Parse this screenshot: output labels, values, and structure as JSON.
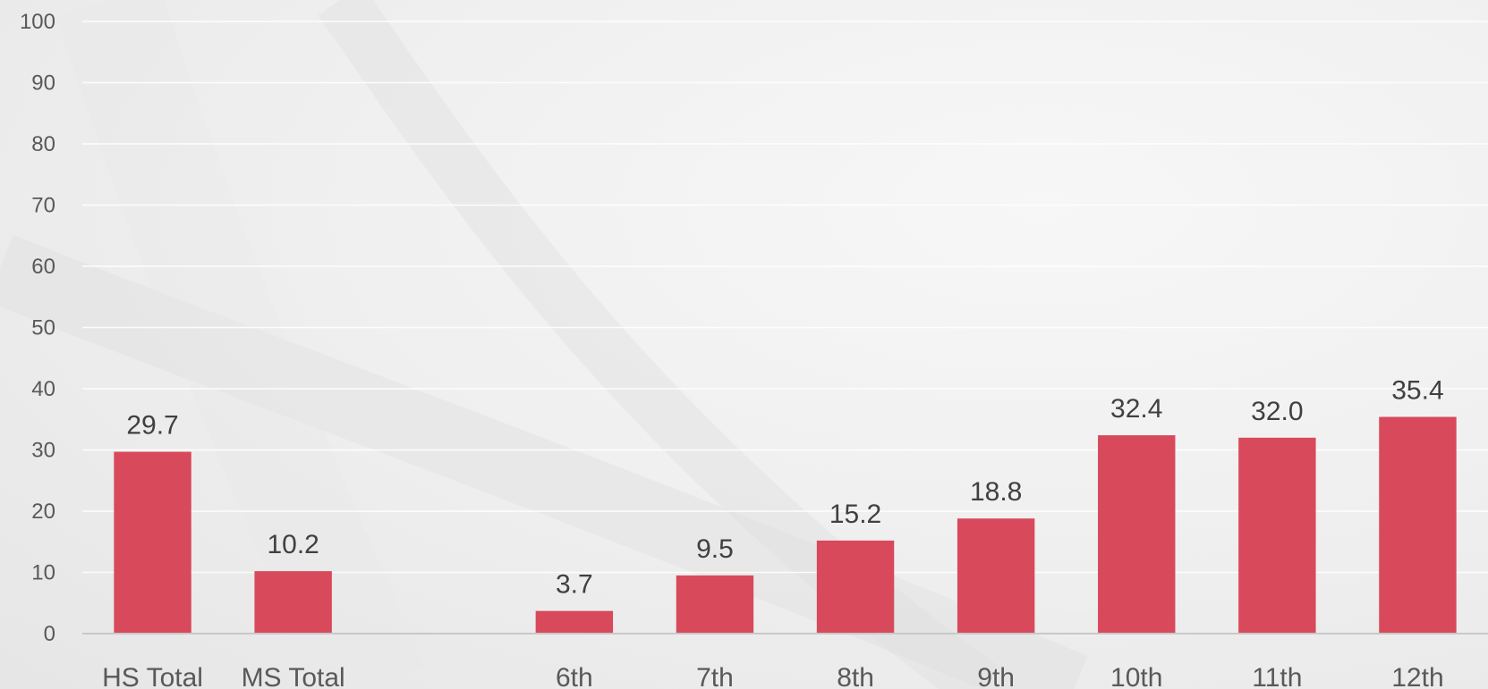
{
  "chart_data": {
    "type": "bar",
    "categories": [
      "HS Total",
      "MS Total",
      "",
      "6th",
      "7th",
      "8th",
      "9th",
      "10th",
      "11th",
      "12th"
    ],
    "values": [
      29.7,
      10.2,
      null,
      3.7,
      9.5,
      15.2,
      18.8,
      32.4,
      32.0,
      35.4
    ],
    "data_labels": [
      "29.7",
      "10.2",
      "",
      "3.7",
      "9.5",
      "15.2",
      "18.8",
      "32.4",
      "32.0",
      "35.4"
    ],
    "ylim": [
      0,
      100
    ],
    "yticks": [
      "0",
      "10",
      "20",
      "30",
      "40",
      "50",
      "60",
      "70",
      "80",
      "90",
      "100"
    ],
    "title": "",
    "xlabel": "",
    "ylabel": "",
    "grid": true,
    "legend": "none",
    "bar_color": "#d8495b",
    "gridline_color": "#ffffff",
    "axis_color": "#c8c8c8"
  }
}
